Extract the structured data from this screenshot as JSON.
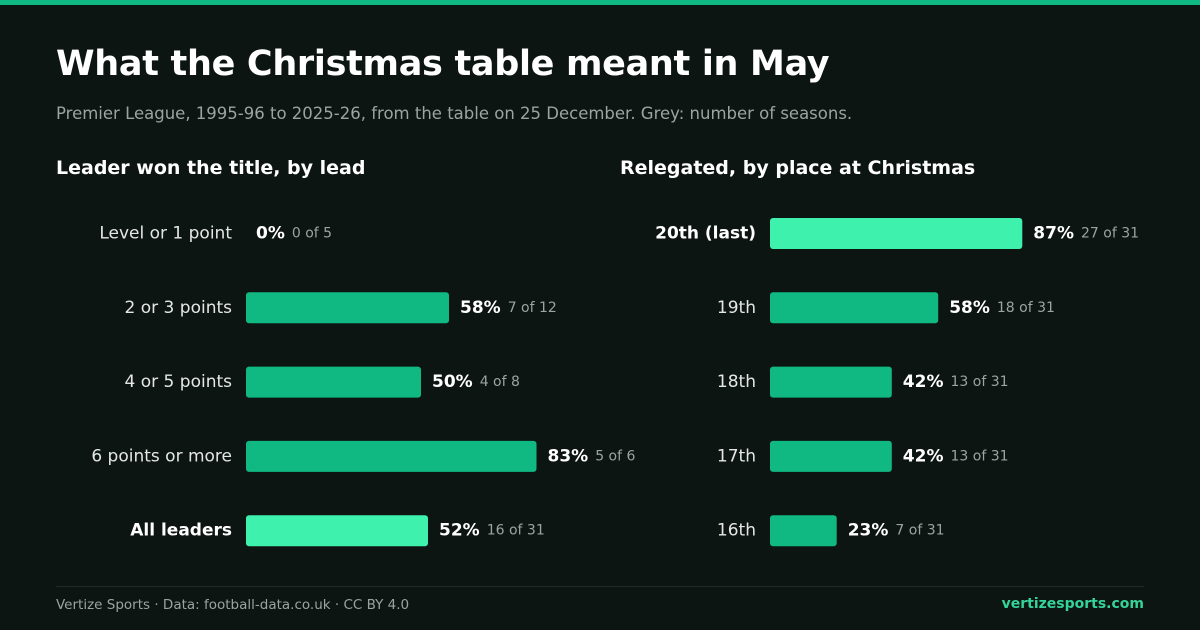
{
  "header": {
    "title": "What the Christmas table meant in May",
    "subtitle": "Premier League, 1995-96 to 2025-26, from the table on 25 December. Grey: number of seasons."
  },
  "colors": {
    "accent": "#10b981",
    "highlight": "#3ef2ae",
    "background": "#0d1512",
    "muted_text": "#9ca3a0",
    "brand_text": "#34d399"
  },
  "chart_data": [
    {
      "type": "bar",
      "orientation": "horizontal",
      "title": "Leader won the title, by lead",
      "categories": [
        "Level or 1 point",
        "2 or 3 points",
        "4 or 5 points",
        "6 points or more",
        "All leaders"
      ],
      "values": [
        0,
        58,
        50,
        83,
        52
      ],
      "value_labels": [
        "0%",
        "58%",
        "50%",
        "83%",
        "52%"
      ],
      "counts": [
        "0 of 5",
        "7 of 12",
        "4 of 8",
        "5 of 6",
        "16 of 31"
      ],
      "highlight": [
        false,
        false,
        false,
        false,
        true
      ],
      "xlim": [
        0,
        100
      ],
      "grid": false,
      "legend": "none"
    },
    {
      "type": "bar",
      "orientation": "horizontal",
      "title": "Relegated, by place at Christmas",
      "categories": [
        "20th (last)",
        "19th",
        "18th",
        "17th",
        "16th"
      ],
      "values": [
        87,
        58,
        42,
        42,
        23
      ],
      "value_labels": [
        "87%",
        "58%",
        "42%",
        "42%",
        "23%"
      ],
      "counts": [
        "27 of 31",
        "18 of 31",
        "13 of 31",
        "13 of 31",
        "7 of 31"
      ],
      "highlight": [
        true,
        false,
        false,
        false,
        false
      ],
      "xlim": [
        0,
        100
      ],
      "grid": false,
      "legend": "none"
    }
  ],
  "footer": {
    "source": "Vertize Sports · Data: football-data.co.uk · CC BY 4.0",
    "brand": "vertizesports.com"
  }
}
